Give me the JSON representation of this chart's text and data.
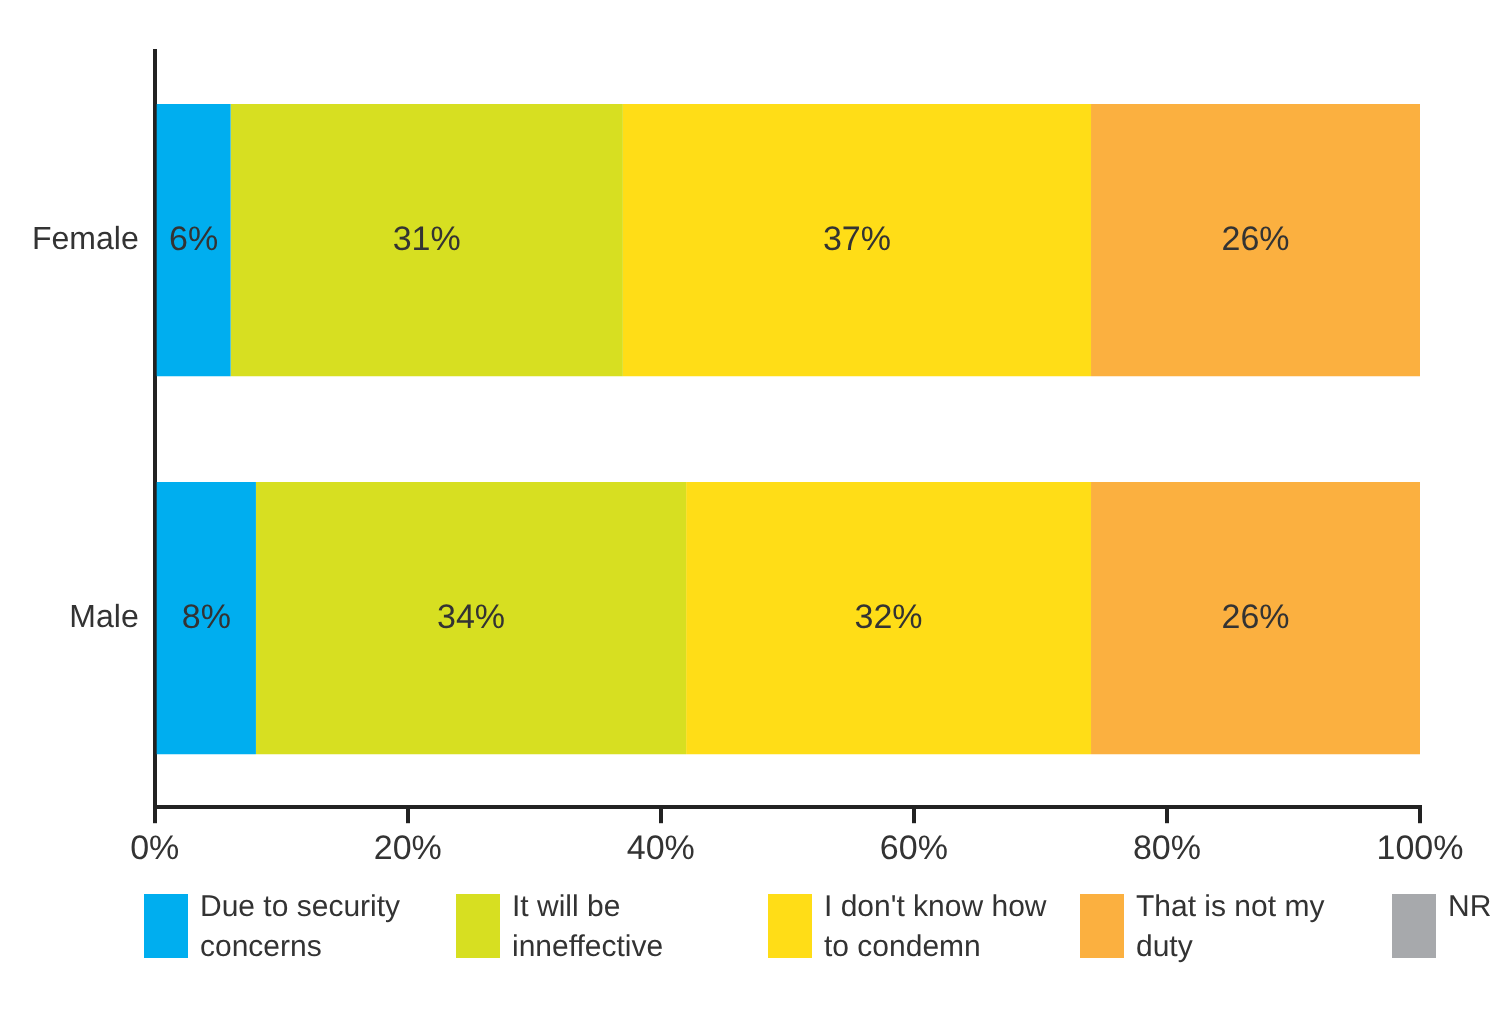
{
  "chart_data": {
    "type": "bar",
    "orientation": "horizontal",
    "stacked": true,
    "categories": [
      "Female",
      "Male"
    ],
    "series": [
      {
        "name": "Due to security concerns",
        "color": "#00aeef",
        "values": [
          6,
          8
        ],
        "value_labels": [
          "6%",
          "8%"
        ]
      },
      {
        "name": "It will be inneffective",
        "color": "#d7df21",
        "values": [
          31,
          34
        ],
        "value_labels": [
          "31%",
          "34%"
        ]
      },
      {
        "name": "I don't know how to condemn",
        "color": "#ffdd17",
        "values": [
          37,
          32
        ],
        "value_labels": [
          "37%",
          "32%"
        ]
      },
      {
        "name": "That is not my duty",
        "color": "#fbb040",
        "values": [
          26,
          26
        ],
        "value_labels": [
          "26%",
          "26%"
        ]
      },
      {
        "name": "NR",
        "color": "#a7a9ac",
        "values": [
          0,
          0
        ],
        "value_labels": [
          null,
          null
        ]
      }
    ],
    "xlim": [
      0,
      100
    ],
    "xticks": [
      {
        "value": 0,
        "label": "0%"
      },
      {
        "value": 20,
        "label": "20%"
      },
      {
        "value": 40,
        "label": "40%"
      },
      {
        "value": 60,
        "label": "60%"
      },
      {
        "value": 80,
        "label": "80%"
      },
      {
        "value": 100,
        "label": "100%"
      }
    ],
    "grid": false,
    "legend": "bottom"
  }
}
